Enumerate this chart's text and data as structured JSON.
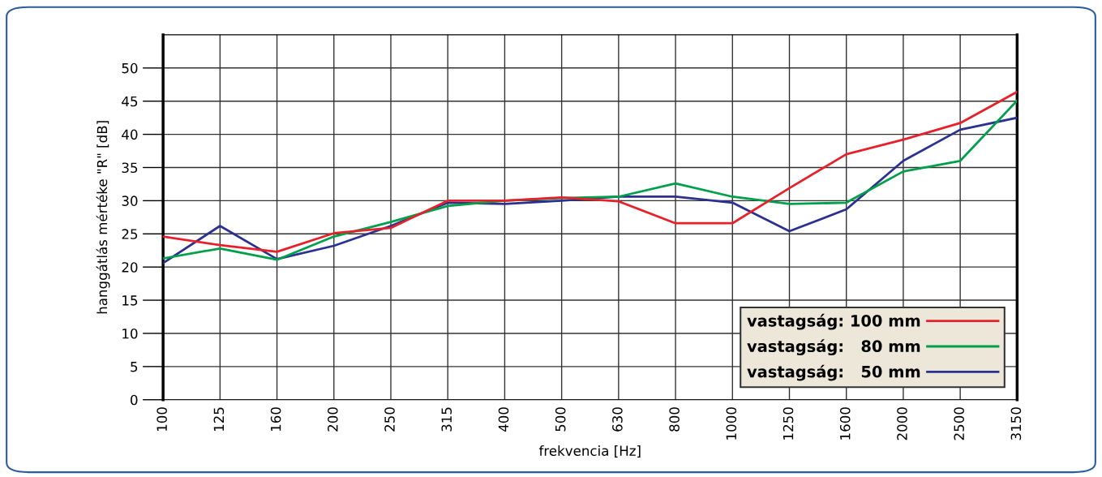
{
  "chart_data": {
    "type": "line",
    "xlabel": "frekvencia [Hz]",
    "ylabel": "hanggátlás mértéke \"R\" [dB]",
    "categories": [
      "100",
      "125",
      "160",
      "200",
      "250",
      "315",
      "400",
      "500",
      "630",
      "800",
      "1000",
      "1250",
      "1600",
      "2000",
      "2500",
      "3150"
    ],
    "series": [
      {
        "name": "vastagság: 100 mm",
        "color": "#e8202a",
        "values": [
          24.6,
          23.3,
          22.3,
          25.1,
          25.9,
          30,
          30,
          30.5,
          29.9,
          26.6,
          26.6,
          31.9,
          37,
          39.2,
          41.7,
          46.4
        ]
      },
      {
        "name": "vastagság:   80 mm",
        "color": "#00a04a",
        "values": [
          21.3,
          22.8,
          21.1,
          24.6,
          26.8,
          29.2,
          30,
          30.4,
          30.6,
          32.6,
          30.6,
          29.5,
          29.7,
          34.4,
          36,
          45.1
        ]
      },
      {
        "name": "vastagság:   50 mm",
        "color": "#2b3190",
        "values": [
          20.6,
          26.2,
          21.2,
          23.2,
          26.2,
          29.7,
          29.5,
          30,
          30.6,
          30.6,
          29.7,
          25.4,
          28.7,
          36,
          40.7,
          42.5
        ]
      }
    ],
    "ylim": [
      0,
      55
    ],
    "yticks": [
      0,
      5,
      10,
      15,
      20,
      25,
      30,
      35,
      40,
      45,
      50
    ],
    "grid": true,
    "legend": "bottom right",
    "marker": "none",
    "line_style": "solid"
  }
}
